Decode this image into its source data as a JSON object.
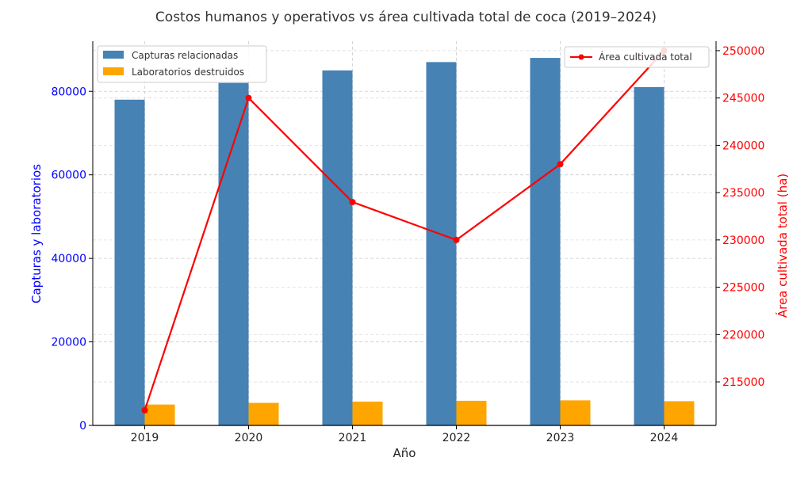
{
  "chart_data": {
    "type": "bar",
    "title": "Costos humanos y operativos vs área cultivada total de coca (2019–2024)",
    "xlabel": "Año",
    "ylabel": "Capturas y laboratorios",
    "ylabel_right": "Área cultivada total (ha)",
    "categories": [
      "2019",
      "2020",
      "2021",
      "2022",
      "2023",
      "2024"
    ],
    "ylim": [
      0,
      92000
    ],
    "yticks": [
      0,
      20000,
      40000,
      60000,
      80000
    ],
    "ytick_labels": [
      "0",
      "20000",
      "40000",
      "60000",
      "80000"
    ],
    "ylim_right": [
      210400,
      251000
    ],
    "yticks_right": [
      215000,
      220000,
      225000,
      230000,
      235000,
      240000,
      245000,
      250000
    ],
    "ytick_labels_right": [
      "215000",
      "220000",
      "225000",
      "230000",
      "235000",
      "240000",
      "245000",
      "250000"
    ],
    "grid": true,
    "series": [
      {
        "name": "Capturas relacionadas",
        "type": "bar",
        "axis": "left",
        "color": "#4682b4",
        "values": [
          78000,
          82000,
          85000,
          87000,
          88000,
          81000
        ]
      },
      {
        "name": "Laboratorios destruidos",
        "type": "bar",
        "axis": "left",
        "color": "#ffa500",
        "values": [
          5000,
          5400,
          5700,
          5900,
          6000,
          5800
        ]
      },
      {
        "name": "Área cultivada total",
        "type": "line",
        "axis": "right",
        "color": "#ff0000",
        "values": [
          212000,
          245000,
          234000,
          230000,
          238000,
          250000
        ]
      }
    ],
    "legend_left_placement": "top-left",
    "legend_right_placement": "top-right",
    "left_axis_color": "#0000ff",
    "right_axis_color": "#ff0000"
  }
}
